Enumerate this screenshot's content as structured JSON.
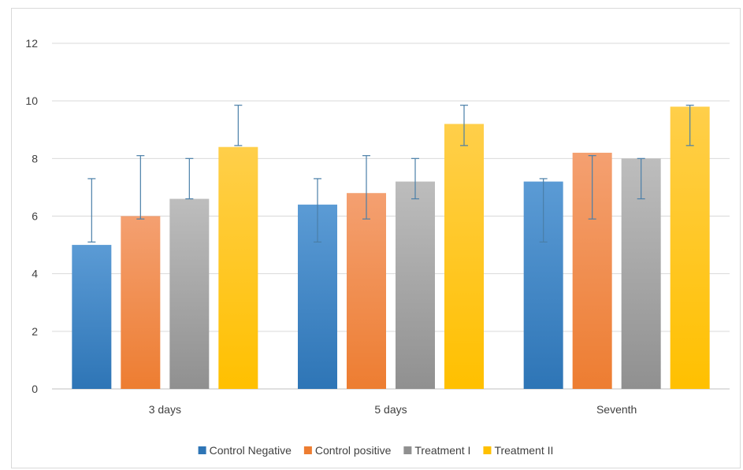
{
  "chart_data": {
    "type": "bar",
    "title": "",
    "xlabel": "",
    "ylabel": "",
    "ylim": [
      0,
      12
    ],
    "yticks": [
      0,
      2,
      4,
      6,
      8,
      10,
      12
    ],
    "grid": true,
    "legend_position": "bottom",
    "categories": [
      "3 days",
      "5 days",
      "Seventh"
    ],
    "series": [
      {
        "name": "Control Negative",
        "color": "#2E75B6",
        "color_light": "#5B9BD5",
        "values": [
          5.0,
          6.4,
          7.2
        ],
        "error_low": [
          5.1,
          5.1,
          5.1
        ],
        "error_high": [
          7.3,
          7.3,
          7.3
        ]
      },
      {
        "name": "Control positive",
        "color": "#ED7D31",
        "color_light": "#F4A071",
        "values": [
          6.0,
          6.8,
          8.2
        ],
        "error_low": [
          5.9,
          5.9,
          5.9
        ],
        "error_high": [
          8.1,
          8.1,
          8.1
        ]
      },
      {
        "name": "Treatment I",
        "color": "#909090",
        "color_light": "#BDBDBD",
        "values": [
          6.6,
          7.2,
          8.0
        ],
        "error_low": [
          6.6,
          6.6,
          6.6
        ],
        "error_high": [
          8.0,
          8.0,
          8.0
        ]
      },
      {
        "name": "Treatment II",
        "color": "#FFC000",
        "color_light": "#FFCF4A",
        "values": [
          8.4,
          9.2,
          9.8
        ],
        "error_low": [
          8.45,
          8.45,
          8.45
        ],
        "error_high": [
          9.85,
          9.85,
          9.85
        ]
      }
    ],
    "error_bar_color": "#4A7FA8"
  }
}
